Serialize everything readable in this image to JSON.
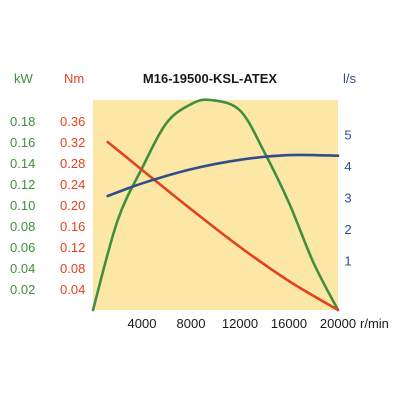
{
  "chart_data": {
    "type": "line",
    "title": "M16-19500-KSL-ATEX",
    "x": {
      "unit": "r/min",
      "range": [
        0,
        20000
      ],
      "ticks": [
        "4000",
        "8000",
        "12000",
        "16000",
        "20000"
      ]
    },
    "y_axes": {
      "power": {
        "unit": "kW",
        "range": [
          0,
          0.2
        ],
        "ticks": [
          "0.02",
          "0.04",
          "0.06",
          "0.08",
          "0.10",
          "0.12",
          "0.14",
          "0.16",
          "0.18"
        ],
        "color": "#3f8f3f"
      },
      "torque": {
        "unit": "Nm",
        "range": [
          0,
          0.4
        ],
        "ticks": [
          "0.04",
          "0.08",
          "0.12",
          "0.16",
          "0.20",
          "0.24",
          "0.28",
          "0.32",
          "0.36"
        ],
        "color": "#e2421e"
      },
      "flow": {
        "unit": "l/s",
        "range": [
          -0.57,
          6.1
        ],
        "ticks": [
          "1",
          "2",
          "3",
          "4",
          "5"
        ],
        "color": "#2f4f8a"
      }
    },
    "plot_background": "#fde7a6",
    "series": [
      {
        "axis": "power",
        "color": "#3f8f3f",
        "x": [
          0,
          2000,
          4000,
          6000,
          8000,
          9600,
          12000,
          14000,
          16000,
          18000,
          20000
        ],
        "y": [
          0,
          0.085,
          0.135,
          0.178,
          0.196,
          0.2,
          0.19,
          0.15,
          0.102,
          0.045,
          0
        ]
      },
      {
        "axis": "torque",
        "color": "#e2421e",
        "x": [
          1200,
          4000,
          8000,
          12000,
          16000,
          20000
        ],
        "y": [
          0.32,
          0.267,
          0.192,
          0.12,
          0.055,
          0
        ]
      },
      {
        "axis": "flow",
        "color": "#2f4f8a",
        "x": [
          1200,
          4000,
          8000,
          12000,
          16000,
          20000
        ],
        "y": [
          3.05,
          3.45,
          3.9,
          4.2,
          4.35,
          4.33
        ]
      }
    ],
    "grid": false
  }
}
